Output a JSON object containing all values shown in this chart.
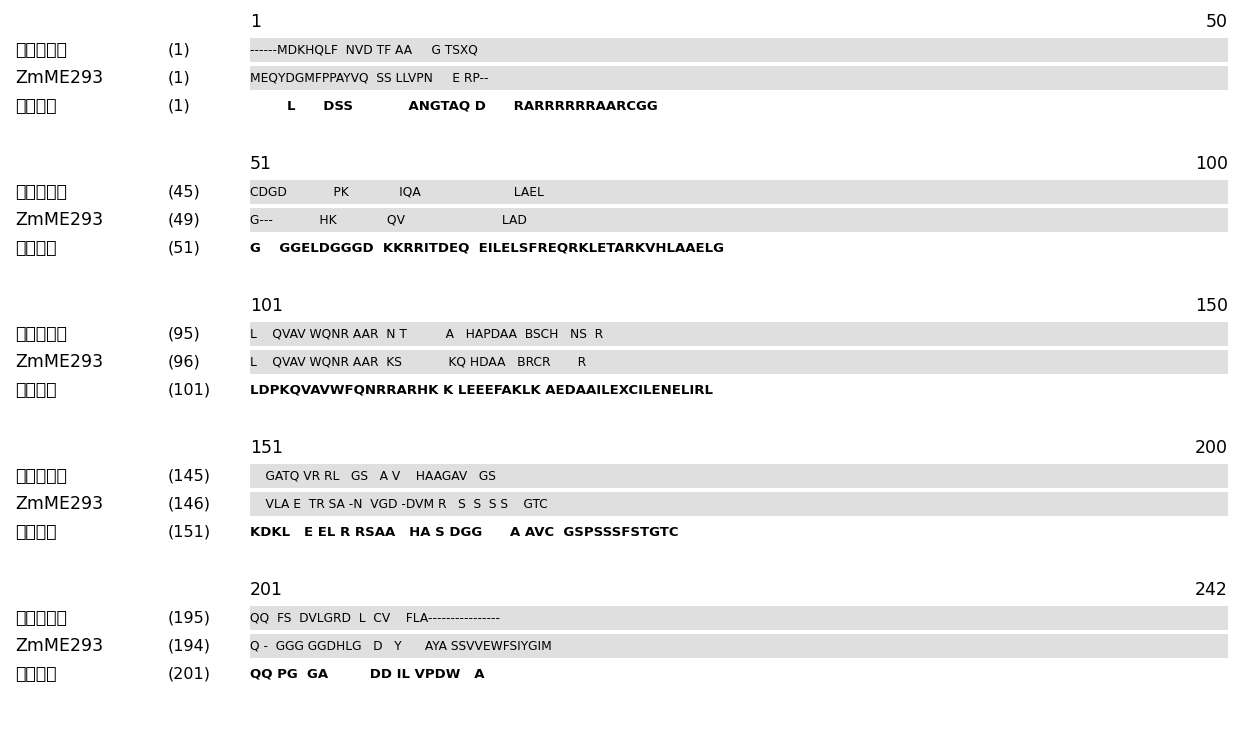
{
  "blocks": [
    {
      "pos_start": "1",
      "pos_end": "50",
      "l1": "大麦同源盒",
      "n1": "(1)",
      "s1": "------MDKHQLF  NVD TF AA     G TSXQ                        ",
      "l2": "ZmME293",
      "n2": "(1)",
      "s2": "MEQYDGMFPPAYVQ  SS LLVPN     E RP--                         ",
      "l3": "共有序列",
      "n3": "(1)",
      "s3": "        L      DSS            ANGTAQ D      RARRRRRRAARCGG"
    },
    {
      "pos_start": "51",
      "pos_end": "100",
      "l1": "大麦同源盒",
      "n1": "(45)",
      "s1": "CDGD            PK             IQA                        LAEL",
      "l2": "ZmME293",
      "n2": "(49)",
      "s2": "G---            HK             QV                         LAD",
      "l3": "共有序列",
      "n3": "(51)",
      "s3": "G    GGELDGGGD  KKRRITDEQ  EILELSFREQRKLETARKVHLAAELG"
    },
    {
      "pos_start": "101",
      "pos_end": "150",
      "l1": "大麦同源盒",
      "n1": "(95)",
      "s1": "L    QVAV WQNR AAR  N T          A   HAPDAA  BSCH   NS  R",
      "l2": "ZmME293",
      "n2": "(96)",
      "s2": "L    QVAV WQNR AAR  KS            KQ HDAA   BRCR       R",
      "l3": "共有序列",
      "n3": "(101)",
      "s3": "LDPKQVAVWFQNRRARHK K LEEEFAKLK AEDAAILEXCILENELIRL"
    },
    {
      "pos_start": "151",
      "pos_end": "200",
      "l1": "大麦同源盒",
      "n1": "(145)",
      "s1": "    GATQ VR RL   GS   A V    HAAGAV   GS                   ",
      "l2": "ZmME293",
      "n2": "(146)",
      "s2": "    VLA E  TR SA -N  VGD -DVM R   S  S  S S    GTC",
      "l3": "共有序列",
      "n3": "(151)",
      "s3": "KDKL   E EL R RSAA   HA S DGG      A AVC  GSPSSSFSTGTC"
    },
    {
      "pos_start": "201",
      "pos_end": "242",
      "l1": "大麦同源盒",
      "n1": "(195)",
      "s1": "QQ  FS  DVLGRD  L  CV    FLA----------------",
      "l2": "ZmME293",
      "n2": "(194)",
      "s2": "Q -  GGG GGDHLG   D   Y      AYA SSVVEWFSIYGIM",
      "l3": "共有序列",
      "n3": "(201)",
      "s3": "QQ PG  GA         DD IL VPDW   A"
    }
  ]
}
